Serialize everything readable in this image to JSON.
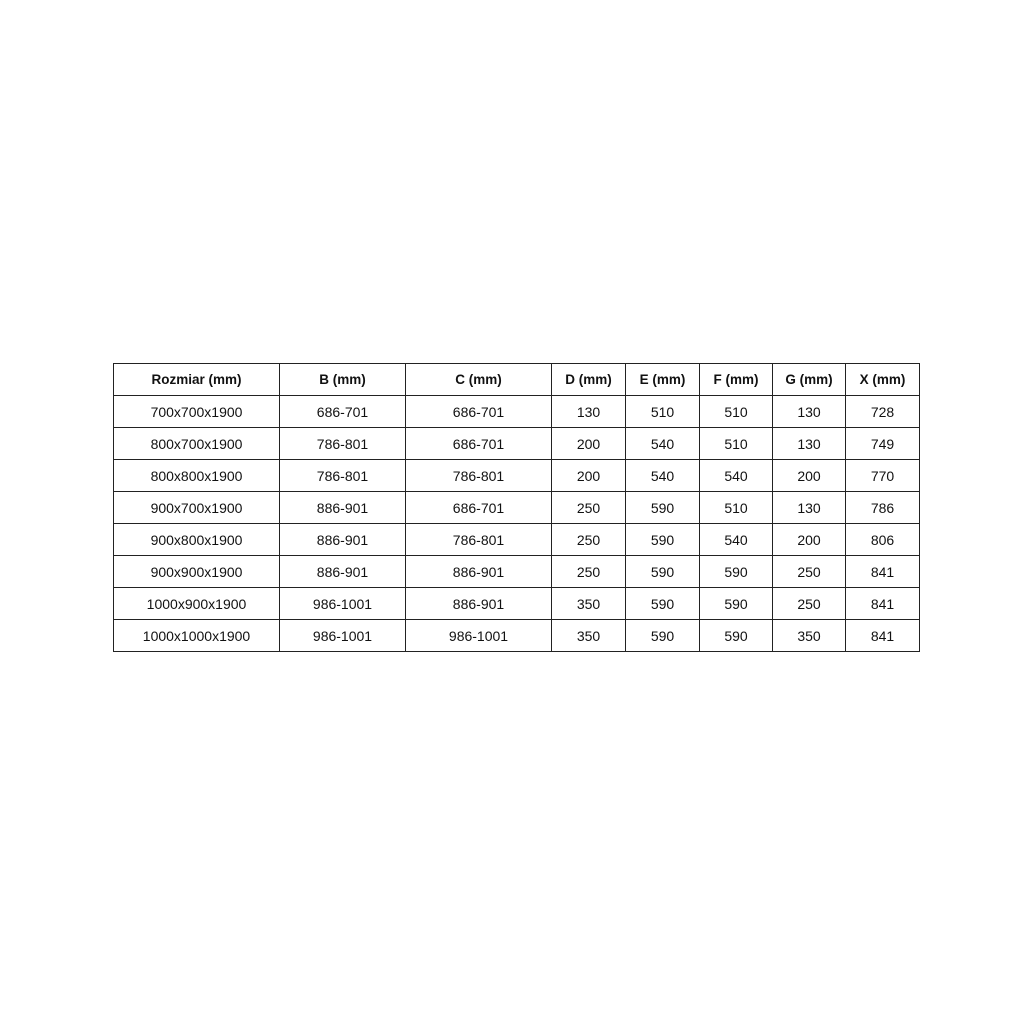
{
  "table": {
    "headers": [
      "Rozmiar (mm)",
      "B (mm)",
      "C (mm)",
      "D (mm)",
      "E (mm)",
      "F (mm)",
      "G (mm)",
      "X (mm)"
    ],
    "rows": [
      [
        "700x700x1900",
        "686-701",
        "686-701",
        "130",
        "510",
        "510",
        "130",
        "728"
      ],
      [
        "800x700x1900",
        "786-801",
        "686-701",
        "200",
        "540",
        "510",
        "130",
        "749"
      ],
      [
        "800x800x1900",
        "786-801",
        "786-801",
        "200",
        "540",
        "540",
        "200",
        "770"
      ],
      [
        "900x700x1900",
        "886-901",
        "686-701",
        "250",
        "590",
        "510",
        "130",
        "786"
      ],
      [
        "900x800x1900",
        "886-901",
        "786-801",
        "250",
        "590",
        "540",
        "200",
        "806"
      ],
      [
        "900x900x1900",
        "886-901",
        "886-901",
        "250",
        "590",
        "590",
        "250",
        "841"
      ],
      [
        "1000x900x1900",
        "986-1001",
        "886-901",
        "350",
        "590",
        "590",
        "250",
        "841"
      ],
      [
        "1000x1000x1900",
        "986-1001",
        "986-1001",
        "350",
        "590",
        "590",
        "350",
        "841"
      ]
    ]
  }
}
